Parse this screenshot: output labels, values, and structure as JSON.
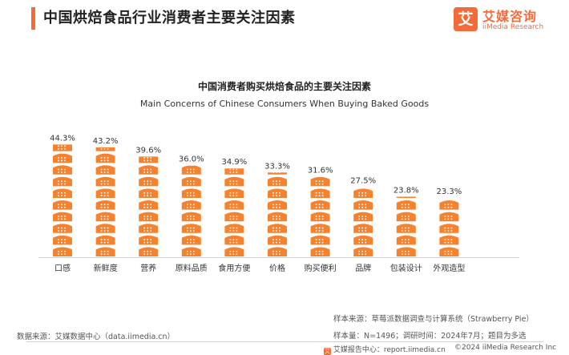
{
  "header": {
    "title": "中国烘焙食品行业消费者主要关注因素",
    "accent_color": "#f26b3a"
  },
  "logo": {
    "mark": "艾",
    "name_cn": "艾媒咨询",
    "name_en": "iiMedia Research",
    "icon": "iimedia-logo-icon"
  },
  "chart_data": {
    "type": "bar",
    "title": "中国消费者购买烘焙食品的主要关注因素",
    "subtitle": "Main Concerns of Chinese Consumers When Buying Baked Goods",
    "categories": [
      "口感",
      "新鲜度",
      "营养",
      "原料品质",
      "食用方便",
      "价格",
      "购买便利",
      "品牌",
      "包装设计",
      "外观造型"
    ],
    "values": [
      44.3,
      43.2,
      39.6,
      36.0,
      34.9,
      33.3,
      31.6,
      27.5,
      23.8,
      23.3
    ],
    "value_labels": [
      "44.3%",
      "43.2%",
      "39.6%",
      "36.0%",
      "34.9%",
      "33.3%",
      "31.6%",
      "27.5%",
      "23.8%",
      "23.3%"
    ],
    "unit": "%",
    "xlabel": "",
    "ylabel": "",
    "ylim": [
      0,
      46
    ],
    "grid": false,
    "legend": "none",
    "colors": [
      "#f5822f",
      "#f5822f",
      "#f5822f",
      "#f5822f",
      "#f5822f",
      "#f5822f",
      "#f5822f",
      "#f5822f",
      "#f5822f",
      "#f5822f"
    ],
    "mark_icon": "bread-icon"
  },
  "footer": {
    "source": "数据来源：艾媒数据中心（data.iimedia.cn）",
    "sample_source": "样本来源：草莓派数据调查与计算系统（Strawberry Pie）",
    "sample_info": "样本量：N=1496；调研时间：2024年7月；题目为多选",
    "report_center": "艾媒报告中心：report.iimedia.cn",
    "copyright": "©2024 iiMedia Research Inc",
    "report_icon": "report-center-icon"
  }
}
